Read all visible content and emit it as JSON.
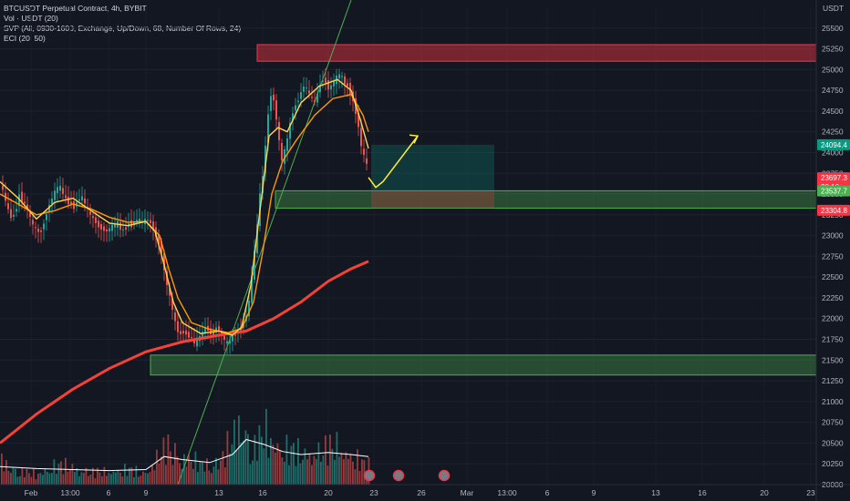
{
  "legend": {
    "line1": "BTCUSDT Perpetual Contract, 4h, BYBIT",
    "line2": "Vol · USDT (20)",
    "line3": "SVP (All, 0930-1600, Exchange, Up/Down, 68, Number Of Rows, 24)",
    "line4": "ECI (20, 50)"
  },
  "currency": "USDT",
  "colors": {
    "background": "#131722",
    "up": "#26a69a",
    "down": "#ef5350",
    "ema_fast": "#ffd54f",
    "ema_slow": "#ff9800",
    "ma_long": "#f44336",
    "supply_zone": "#f23645",
    "demand_zone": "#4caf50",
    "projection": "#ffeb3b",
    "trendline": "#4caf50"
  },
  "chart_data": {
    "type": "candlestick",
    "ylim": [
      20000,
      25750
    ],
    "yticks": [
      20000,
      20250,
      20500,
      20750,
      21000,
      21250,
      21500,
      21750,
      22000,
      22250,
      22500,
      22750,
      23000,
      23250,
      23500,
      23750,
      24000,
      24250,
      24500,
      24750,
      25000,
      25250,
      25500
    ],
    "xticks": [
      "Feb",
      "13:00",
      "6",
      "9",
      "13",
      "16",
      "20",
      "23",
      "26",
      "Mar",
      "13:00",
      "6",
      "9",
      "13",
      "16",
      "20",
      "23"
    ],
    "price_badges": [
      {
        "label": "24094.4",
        "value": 24094.4,
        "color": "#089981"
      },
      {
        "label": "23697.3",
        "value": 23697.3,
        "color": "#f23645"
      },
      {
        "label": "30:16",
        "value": 23590,
        "color": "#f23645"
      },
      {
        "label": "23537.7",
        "value": 23537.7,
        "color": "#4caf50"
      },
      {
        "label": "23304.8",
        "value": 23304.8,
        "color": "#f23645"
      }
    ],
    "zones": [
      {
        "name": "supply",
        "from": 25100,
        "to": 25300
      },
      {
        "name": "demand-upper",
        "from": 23330,
        "to": 23540
      },
      {
        "name": "demand-lower",
        "from": 21320,
        "to": 21560
      }
    ],
    "close_path": [
      [
        0,
        23600
      ],
      [
        4,
        23450
      ],
      [
        8,
        23300
      ],
      [
        12,
        23200
      ],
      [
        16,
        23300
      ],
      [
        20,
        23500
      ],
      [
        24,
        23400
      ],
      [
        28,
        23350
      ],
      [
        32,
        23200
      ],
      [
        36,
        23100
      ],
      [
        40,
        23050
      ],
      [
        44,
        23050
      ],
      [
        48,
        23200
      ],
      [
        52,
        23350
      ],
      [
        56,
        23450
      ],
      [
        60,
        23550
      ],
      [
        64,
        23600
      ],
      [
        68,
        23500
      ],
      [
        72,
        23420
      ],
      [
        76,
        23380
      ],
      [
        80,
        23350
      ],
      [
        84,
        23420
      ],
      [
        88,
        23480
      ],
      [
        92,
        23380
      ],
      [
        96,
        23270
      ],
      [
        100,
        23220
      ],
      [
        104,
        23160
      ],
      [
        108,
        23100
      ],
      [
        112,
        23080
      ],
      [
        116,
        23050
      ],
      [
        120,
        23100
      ],
      [
        124,
        23120
      ],
      [
        128,
        23150
      ],
      [
        132,
        23050
      ],
      [
        136,
        23080
      ],
      [
        140,
        23150
      ],
      [
        144,
        23120
      ],
      [
        148,
        23200
      ],
      [
        152,
        23180
      ],
      [
        156,
        23160
      ],
      [
        160,
        23200
      ],
      [
        164,
        23150
      ],
      [
        168,
        23050
      ],
      [
        172,
        22950
      ],
      [
        176,
        22800
      ],
      [
        180,
        22500
      ],
      [
        184,
        22300
      ],
      [
        188,
        22100
      ],
      [
        192,
        21900
      ],
      [
        196,
        21800
      ],
      [
        200,
        21850
      ],
      [
        204,
        21800
      ],
      [
        208,
        21780
      ],
      [
        212,
        21700
      ],
      [
        216,
        21760
      ],
      [
        220,
        21800
      ],
      [
        224,
        21900
      ],
      [
        228,
        21850
      ],
      [
        232,
        21800
      ],
      [
        236,
        21900
      ],
      [
        240,
        21850
      ],
      [
        244,
        21750
      ],
      [
        248,
        21700
      ],
      [
        252,
        21760
      ],
      [
        256,
        21800
      ],
      [
        260,
        21850
      ],
      [
        264,
        21900
      ],
      [
        268,
        22000
      ],
      [
        272,
        22200
      ],
      [
        276,
        22600
      ],
      [
        280,
        23000
      ],
      [
        284,
        23500
      ],
      [
        288,
        23800
      ],
      [
        292,
        24400
      ],
      [
        296,
        24700
      ],
      [
        300,
        24600
      ],
      [
        304,
        24200
      ],
      [
        308,
        23900
      ],
      [
        312,
        24050
      ],
      [
        316,
        24300
      ],
      [
        320,
        24500
      ],
      [
        324,
        24600
      ],
      [
        328,
        24700
      ],
      [
        332,
        24800
      ],
      [
        336,
        24750
      ],
      [
        340,
        24650
      ],
      [
        344,
        24600
      ],
      [
        348,
        24750
      ],
      [
        352,
        24900
      ],
      [
        356,
        24850
      ],
      [
        360,
        24750
      ],
      [
        364,
        24850
      ],
      [
        368,
        24900
      ],
      [
        372,
        24950
      ],
      [
        376,
        24850
      ],
      [
        380,
        24800
      ],
      [
        384,
        24700
      ],
      [
        388,
        24550
      ],
      [
        392,
        24300
      ],
      [
        396,
        24000
      ],
      [
        400,
        23900
      ],
      [
        404,
        23700
      ]
    ],
    "ema_fast": [
      [
        0,
        23650
      ],
      [
        20,
        23450
      ],
      [
        40,
        23200
      ],
      [
        60,
        23400
      ],
      [
        80,
        23450
      ],
      [
        100,
        23300
      ],
      [
        120,
        23150
      ],
      [
        140,
        23120
      ],
      [
        160,
        23170
      ],
      [
        170,
        23050
      ],
      [
        180,
        22650
      ],
      [
        190,
        22200
      ],
      [
        200,
        21950
      ],
      [
        220,
        21820
      ],
      [
        240,
        21850
      ],
      [
        255,
        21800
      ],
      [
        265,
        21900
      ],
      [
        275,
        22400
      ],
      [
        285,
        23300
      ],
      [
        295,
        24200
      ],
      [
        305,
        24300
      ],
      [
        315,
        24250
      ],
      [
        330,
        24600
      ],
      [
        350,
        24800
      ],
      [
        370,
        24880
      ],
      [
        385,
        24750
      ],
      [
        395,
        24400
      ],
      [
        404,
        24050
      ]
    ],
    "ema_slow": [
      [
        0,
        23500
      ],
      [
        20,
        23380
      ],
      [
        40,
        23250
      ],
      [
        60,
        23300
      ],
      [
        80,
        23380
      ],
      [
        100,
        23320
      ],
      [
        120,
        23220
      ],
      [
        140,
        23160
      ],
      [
        160,
        23170
      ],
      [
        175,
        23000
      ],
      [
        185,
        22600
      ],
      [
        195,
        22250
      ],
      [
        210,
        21950
      ],
      [
        230,
        21870
      ],
      [
        250,
        21830
      ],
      [
        265,
        21880
      ],
      [
        278,
        22200
      ],
      [
        288,
        22800
      ],
      [
        298,
        23500
      ],
      [
        310,
        23900
      ],
      [
        325,
        24150
      ],
      [
        345,
        24450
      ],
      [
        365,
        24650
      ],
      [
        385,
        24700
      ],
      [
        398,
        24450
      ],
      [
        404,
        24250
      ]
    ],
    "ma_long": [
      [
        0,
        20500
      ],
      [
        40,
        20850
      ],
      [
        80,
        21150
      ],
      [
        120,
        21400
      ],
      [
        160,
        21600
      ],
      [
        200,
        21720
      ],
      [
        240,
        21800
      ],
      [
        270,
        21850
      ],
      [
        300,
        22000
      ],
      [
        330,
        22200
      ],
      [
        360,
        22450
      ],
      [
        385,
        22600
      ],
      [
        404,
        22690
      ]
    ],
    "projection": [
      [
        404,
        23700
      ],
      [
        412,
        23580
      ],
      [
        420,
        23650
      ],
      [
        458,
        24200
      ]
    ],
    "volume_peaks": [
      [
        0,
        0.35
      ],
      [
        20,
        0.2
      ],
      [
        40,
        0.15
      ],
      [
        60,
        0.3
      ],
      [
        80,
        0.25
      ],
      [
        100,
        0.18
      ],
      [
        120,
        0.2
      ],
      [
        140,
        0.22
      ],
      [
        160,
        0.18
      ],
      [
        175,
        0.45
      ],
      [
        185,
        0.6
      ],
      [
        200,
        0.4
      ],
      [
        220,
        0.3
      ],
      [
        240,
        0.35
      ],
      [
        255,
        0.7
      ],
      [
        265,
        1.0
      ],
      [
        275,
        0.5
      ],
      [
        290,
        0.8
      ],
      [
        300,
        0.6
      ],
      [
        315,
        0.55
      ],
      [
        330,
        0.45
      ],
      [
        350,
        0.5
      ],
      [
        370,
        0.6
      ],
      [
        385,
        0.4
      ],
      [
        400,
        0.3
      ]
    ],
    "volume_ma": [
      [
        0,
        0.18
      ],
      [
        40,
        0.16
      ],
      [
        80,
        0.15
      ],
      [
        120,
        0.14
      ],
      [
        160,
        0.15
      ],
      [
        180,
        0.28
      ],
      [
        200,
        0.25
      ],
      [
        230,
        0.22
      ],
      [
        255,
        0.3
      ],
      [
        270,
        0.45
      ],
      [
        290,
        0.4
      ],
      [
        310,
        0.33
      ],
      [
        330,
        0.3
      ],
      [
        360,
        0.32
      ],
      [
        385,
        0.3
      ],
      [
        404,
        0.28
      ]
    ]
  }
}
